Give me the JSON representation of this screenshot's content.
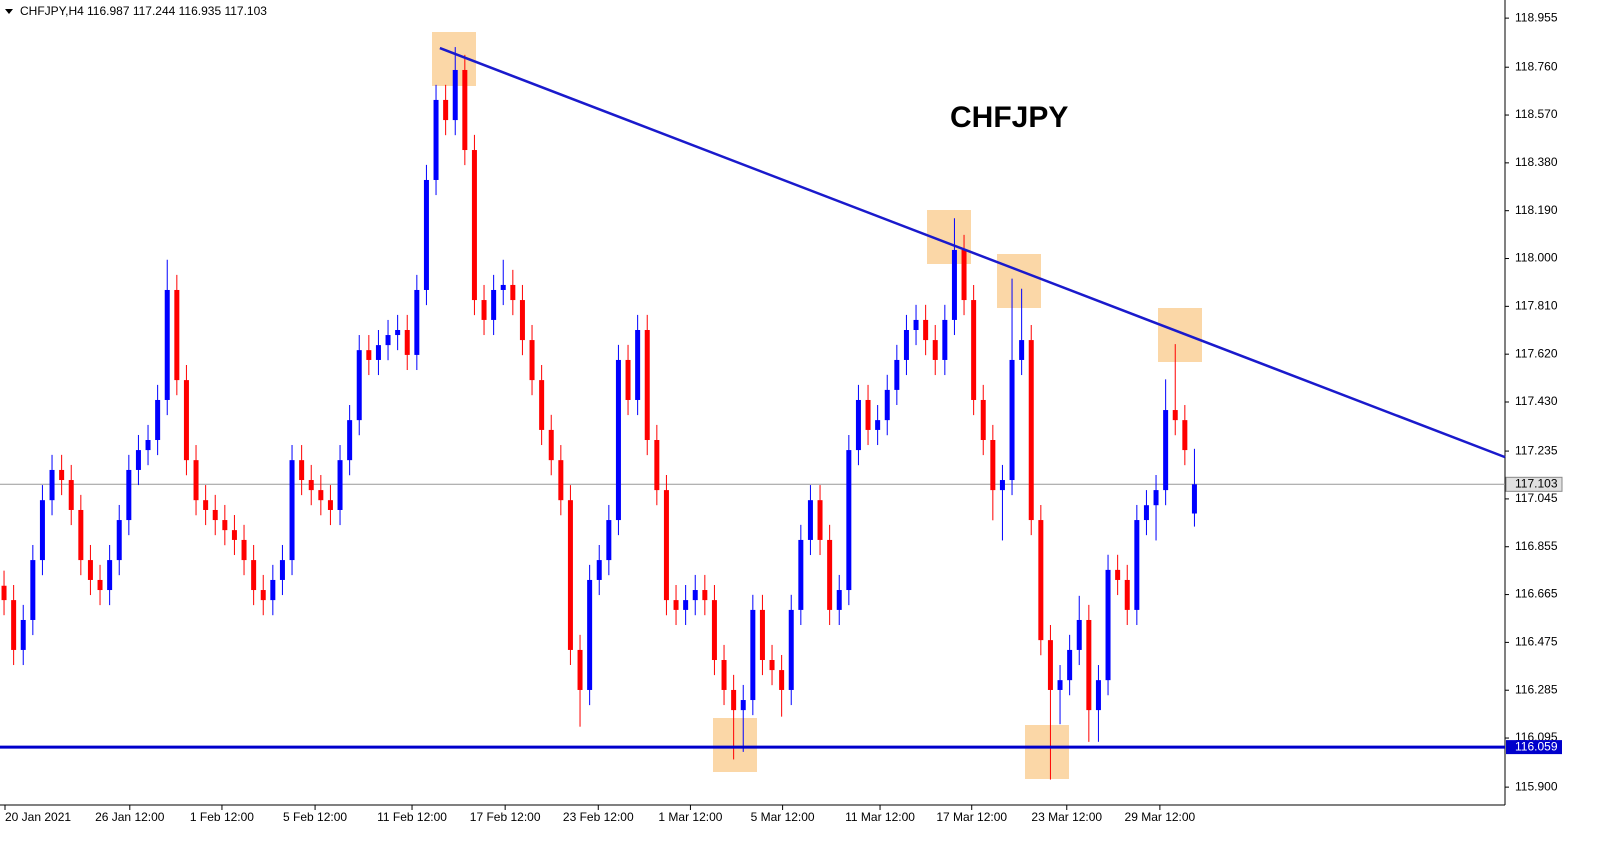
{
  "chart_data": {
    "type": "candlestick",
    "header": {
      "symbol": "CHFJPY,H4",
      "ohlc": "116.987 117.244 116.935 117.103"
    },
    "title": "CHFJPY",
    "up_color": "#0000ff",
    "down_color": "#ff0000",
    "open": [
      116.7,
      116.643,
      116.445,
      116.564,
      116.802,
      117.04,
      117.16,
      117.12,
      117.001,
      116.802,
      116.723,
      116.683,
      116.802,
      116.961,
      117.16,
      117.239,
      117.279,
      117.438,
      117.875,
      117.517,
      117.199,
      117.04,
      117.001,
      116.961,
      116.921,
      116.882,
      116.802,
      116.683,
      116.643,
      116.723,
      116.802,
      117.199,
      117.12,
      117.08,
      117.04,
      117.001,
      117.199,
      117.358,
      117.636,
      117.597,
      117.656,
      117.696,
      117.716,
      117.617,
      117.875,
      118.312,
      118.63,
      118.55,
      118.749,
      118.431,
      117.835,
      117.756,
      117.875,
      117.895,
      117.835,
      117.676,
      117.517,
      117.319,
      117.199,
      117.04,
      116.445,
      116.286,
      116.723,
      116.802,
      116.961,
      117.597,
      117.438,
      117.716,
      117.279,
      117.08,
      116.643,
      116.604,
      116.643,
      116.683,
      116.643,
      116.405,
      116.286,
      116.206,
      116.246,
      116.604,
      116.405,
      116.365,
      116.286,
      116.604,
      116.882,
      117.04,
      116.882,
      116.604,
      116.683,
      117.239,
      117.438,
      117.319,
      117.358,
      117.478,
      117.597,
      117.716,
      117.756,
      117.676,
      117.597,
      117.756,
      118.034,
      117.835,
      117.438,
      117.279,
      117.08,
      117.12,
      117.597,
      117.676,
      116.961,
      116.484,
      116.286,
      116.325,
      116.445,
      116.564,
      116.206,
      116.325,
      116.763,
      116.723,
      116.604,
      116.961,
      117.02,
      117.08,
      117.398,
      117.358,
      116.987
    ],
    "high": [
      116.76,
      116.703,
      116.624,
      116.862,
      117.1,
      117.22,
      117.22,
      117.18,
      117.061,
      116.862,
      116.783,
      116.862,
      117.021,
      117.22,
      117.299,
      117.339,
      117.498,
      117.995,
      117.935,
      117.577,
      117.259,
      117.1,
      117.061,
      117.021,
      116.981,
      116.942,
      116.862,
      116.743,
      116.783,
      116.862,
      117.259,
      117.259,
      117.18,
      117.14,
      117.1,
      117.259,
      117.418,
      117.696,
      117.696,
      117.716,
      117.756,
      117.776,
      117.776,
      117.935,
      118.372,
      118.69,
      118.69,
      118.84,
      118.809,
      118.491,
      117.895,
      117.935,
      117.995,
      117.955,
      117.895,
      117.736,
      117.577,
      117.379,
      117.259,
      117.1,
      116.505,
      116.783,
      116.862,
      117.021,
      117.657,
      117.657,
      117.776,
      117.776,
      117.339,
      117.14,
      116.703,
      116.703,
      116.743,
      116.743,
      116.703,
      116.465,
      116.346,
      116.306,
      116.664,
      116.664,
      116.465,
      116.425,
      116.664,
      116.942,
      117.1,
      117.1,
      116.942,
      116.743,
      117.299,
      117.498,
      117.498,
      117.418,
      117.538,
      117.657,
      117.776,
      117.816,
      117.816,
      117.736,
      117.816,
      118.16,
      118.094,
      117.895,
      117.498,
      117.339,
      117.18,
      117.92,
      117.88,
      117.736,
      117.021,
      116.544,
      116.385,
      116.505,
      116.66,
      116.624,
      116.385,
      116.823,
      116.823,
      116.783,
      117.021,
      117.08,
      117.14,
      117.52,
      117.66,
      117.418,
      117.244
    ],
    "low": [
      116.583,
      116.385,
      116.385,
      116.504,
      116.742,
      116.98,
      117.06,
      116.941,
      116.742,
      116.663,
      116.623,
      116.623,
      116.742,
      116.901,
      117.1,
      117.179,
      117.219,
      117.378,
      117.457,
      117.139,
      116.98,
      116.941,
      116.901,
      116.861,
      116.822,
      116.742,
      116.623,
      116.583,
      116.583,
      116.663,
      116.742,
      117.06,
      117.02,
      116.98,
      116.941,
      116.941,
      117.139,
      117.298,
      117.537,
      117.537,
      117.596,
      117.636,
      117.557,
      117.557,
      117.815,
      118.252,
      118.49,
      118.49,
      118.371,
      117.775,
      117.696,
      117.696,
      117.815,
      117.775,
      117.616,
      117.457,
      117.259,
      117.139,
      116.98,
      116.385,
      116.14,
      116.226,
      116.663,
      116.742,
      116.901,
      117.378,
      117.378,
      117.219,
      117.02,
      116.583,
      116.544,
      116.544,
      116.583,
      116.583,
      116.345,
      116.226,
      116.01,
      116.04,
      116.186,
      116.345,
      116.305,
      116.18,
      116.226,
      116.544,
      116.822,
      116.822,
      116.544,
      116.544,
      116.623,
      117.179,
      117.259,
      117.259,
      117.298,
      117.418,
      117.537,
      117.656,
      117.616,
      117.537,
      117.537,
      117.696,
      117.775,
      117.378,
      117.219,
      116.96,
      116.88,
      117.06,
      117.537,
      116.901,
      116.424,
      115.93,
      116.15,
      116.265,
      116.385,
      116.08,
      116.08,
      116.265,
      116.663,
      116.544,
      116.544,
      116.901,
      116.88,
      117.02,
      117.298,
      117.179,
      116.935
    ],
    "close": [
      116.643,
      116.445,
      116.564,
      116.802,
      117.04,
      117.16,
      117.12,
      117.001,
      116.802,
      116.723,
      116.683,
      116.802,
      116.961,
      117.16,
      117.239,
      117.279,
      117.438,
      117.875,
      117.517,
      117.199,
      117.04,
      117.001,
      116.961,
      116.921,
      116.882,
      116.802,
      116.683,
      116.643,
      116.723,
      116.802,
      117.199,
      117.12,
      117.08,
      117.04,
      117.001,
      117.199,
      117.358,
      117.636,
      117.597,
      117.656,
      117.696,
      117.716,
      117.617,
      117.875,
      118.312,
      118.63,
      118.55,
      118.749,
      118.431,
      117.835,
      117.756,
      117.875,
      117.895,
      117.835,
      117.676,
      117.517,
      117.319,
      117.199,
      117.04,
      116.445,
      116.286,
      116.723,
      116.802,
      116.961,
      117.597,
      117.438,
      117.716,
      117.279,
      117.08,
      116.643,
      116.604,
      116.643,
      116.683,
      116.643,
      116.405,
      116.286,
      116.206,
      116.246,
      116.604,
      116.405,
      116.365,
      116.286,
      116.604,
      116.882,
      117.04,
      116.882,
      116.604,
      116.683,
      117.239,
      117.438,
      117.319,
      117.358,
      117.478,
      117.597,
      117.716,
      117.756,
      117.676,
      117.597,
      117.756,
      118.034,
      117.835,
      117.438,
      117.279,
      117.08,
      117.12,
      117.597,
      117.676,
      116.961,
      116.484,
      116.286,
      116.325,
      116.445,
      116.564,
      116.206,
      116.325,
      116.763,
      116.723,
      116.604,
      116.961,
      117.02,
      117.08,
      117.398,
      117.358,
      117.239,
      117.103
    ],
    "xlim": [
      -0.42,
      156.35
    ],
    "ylim": [
      115.829,
      119.027
    ],
    "xticks": [
      {
        "value": 0.1,
        "label": "20 Jan 2021"
      },
      {
        "value": 13.1,
        "label": "26 Jan 12:00"
      },
      {
        "value": 22.7,
        "label": "1 Feb 12:00"
      },
      {
        "value": 32.4,
        "label": "5 Feb 12:00"
      },
      {
        "value": 42.5,
        "label": "11 Feb 12:00"
      },
      {
        "value": 52.2,
        "label": "17 Feb 12:00"
      },
      {
        "value": 61.9,
        "label": "23 Feb 12:00"
      },
      {
        "value": 71.5,
        "label": "1 Mar 12:00"
      },
      {
        "value": 81.1,
        "label": "5 Mar 12:00"
      },
      {
        "value": 91.25,
        "label": "11 Mar 12:00"
      },
      {
        "value": 100.8,
        "label": "17 Mar 12:00"
      },
      {
        "value": 110.7,
        "label": "23 Mar 12:00"
      },
      {
        "value": 120.4,
        "label": "29 Mar 12:00"
      }
    ],
    "yticks": [
      118.955,
      {
        "value": 118.76,
        "label": "118.760"
      },
      {
        "value": 118.57,
        "label": "118.570"
      },
      {
        "value": 118.38,
        "label": "118.380"
      },
      {
        "value": 118.19,
        "label": "118.190"
      },
      {
        "value": 118,
        "label": "118.000"
      },
      {
        "value": 117.81,
        "label": "117.810"
      },
      {
        "value": 117.62,
        "label": "117.620"
      },
      {
        "value": 117.43,
        "label": "117.430"
      },
      117.235,
      117.045,
      116.855,
      116.665,
      116.475,
      116.285,
      116.095,
      {
        "value": 115.9,
        "label": "115.900"
      }
    ],
    "current_price": {
      "value": 117.103,
      "label": "117.103"
    },
    "support": {
      "value": 116.059,
      "label": "116.059",
      "color": "#0000cc"
    },
    "trendline": {
      "x": [
        45.4,
        156.35
      ],
      "y": [
        118.836,
        117.211
      ],
      "color": "#1a1acc"
    }
  }
}
